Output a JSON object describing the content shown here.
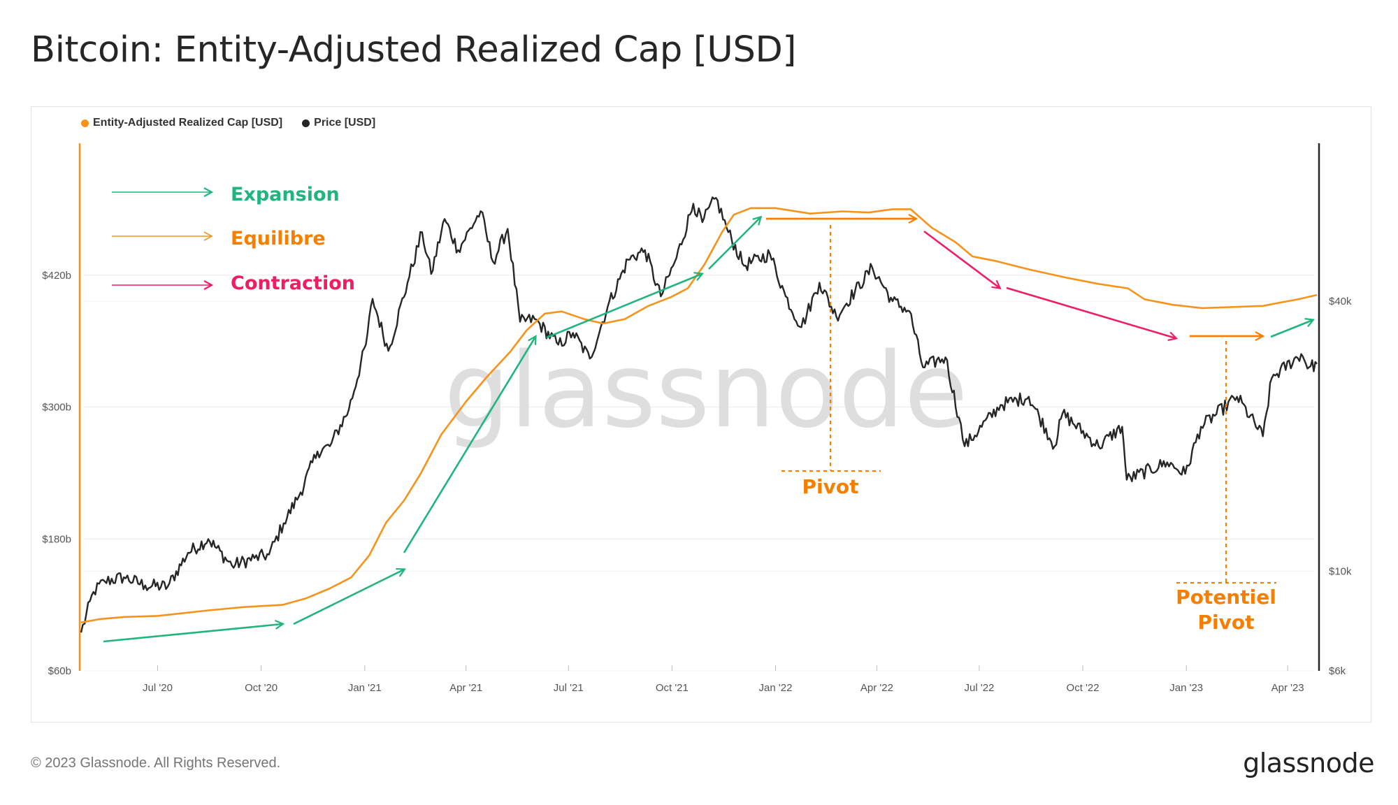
{
  "header": {
    "title": "Bitcoin: Entity-Adjusted Realized Cap [USD]"
  },
  "footer": {
    "copyright": "© 2023 Glassnode. All Rights Reserved.",
    "brand": "glassnode"
  },
  "watermark": "glassnode",
  "colors": {
    "realized_cap": "#f7931a",
    "price": "#262626",
    "expansion": "#1fb57c",
    "equilibre": "#f7931a",
    "contraction": "#ee1e61",
    "pivot": "#f77f00"
  },
  "chart_data": {
    "type": "line",
    "title": "Bitcoin: Entity-Adjusted Realized Cap [USD]",
    "legend_position": "top-left",
    "grid": true,
    "x_ticks": [
      "Jul '20",
      "Oct '20",
      "Jan '21",
      "Apr '21",
      "Jul '21",
      "Oct '21",
      "Jan '22",
      "Apr '22",
      "Jul '22",
      "Oct '22",
      "Jan '23",
      "Apr '23"
    ],
    "x_range": [
      "2020-04-24",
      "2023-04-27"
    ],
    "y_left": {
      "ticks": [
        "$60b",
        "$180b",
        "$300b",
        "$420b"
      ],
      "tick_values": [
        60,
        180,
        300,
        420
      ],
      "range": [
        60,
        540
      ],
      "unit": "USD billions"
    },
    "y_right": {
      "scale": "log",
      "ticks": [
        "$6k",
        "$10k",
        "$40k"
      ],
      "tick_values": [
        6000,
        10000,
        40000
      ],
      "range": [
        6000,
        90000
      ],
      "unit": "USD"
    },
    "series": [
      {
        "name": "Entity-Adjusted Realized Cap [USD]",
        "axis": "left",
        "points": [
          [
            "2020-04-24",
            104
          ],
          [
            "2020-05-10",
            107
          ],
          [
            "2020-06-01",
            109
          ],
          [
            "2020-07-01",
            110
          ],
          [
            "2020-08-15",
            115
          ],
          [
            "2020-09-15",
            118
          ],
          [
            "2020-10-20",
            120
          ],
          [
            "2020-11-10",
            126
          ],
          [
            "2020-12-01",
            135
          ],
          [
            "2020-12-20",
            145
          ],
          [
            "2021-01-05",
            165
          ],
          [
            "2021-01-20",
            195
          ],
          [
            "2021-02-05",
            215
          ],
          [
            "2021-02-20",
            240
          ],
          [
            "2021-03-10",
            275
          ],
          [
            "2021-04-01",
            305
          ],
          [
            "2021-04-20",
            328
          ],
          [
            "2021-05-10",
            350
          ],
          [
            "2021-05-25",
            370
          ],
          [
            "2021-06-10",
            385
          ],
          [
            "2021-06-25",
            387
          ],
          [
            "2021-07-15",
            380
          ],
          [
            "2021-08-01",
            376
          ],
          [
            "2021-08-20",
            380
          ],
          [
            "2021-09-10",
            392
          ],
          [
            "2021-09-30",
            400
          ],
          [
            "2021-10-15",
            408
          ],
          [
            "2021-10-30",
            430
          ],
          [
            "2021-11-15",
            460
          ],
          [
            "2021-11-25",
            475
          ],
          [
            "2021-12-10",
            481
          ],
          [
            "2022-01-01",
            481
          ],
          [
            "2022-02-01",
            476
          ],
          [
            "2022-03-01",
            478
          ],
          [
            "2022-03-25",
            477
          ],
          [
            "2022-04-15",
            480
          ],
          [
            "2022-05-01",
            480
          ],
          [
            "2022-05-20",
            463
          ],
          [
            "2022-06-10",
            450
          ],
          [
            "2022-06-25",
            437
          ],
          [
            "2022-07-15",
            433
          ],
          [
            "2022-08-15",
            425
          ],
          [
            "2022-09-15",
            418
          ],
          [
            "2022-10-15",
            412
          ],
          [
            "2022-11-10",
            408
          ],
          [
            "2022-11-25",
            398
          ],
          [
            "2022-12-20",
            393
          ],
          [
            "2023-01-15",
            390
          ],
          [
            "2023-02-10",
            391
          ],
          [
            "2023-03-10",
            392
          ],
          [
            "2023-03-25",
            395
          ],
          [
            "2023-04-10",
            398
          ],
          [
            "2023-04-27",
            402
          ]
        ]
      },
      {
        "name": "Price [USD]",
        "axis": "right",
        "points": [
          [
            "2020-04-24",
            7300
          ],
          [
            "2020-05-05",
            9000
          ],
          [
            "2020-05-15",
            9500
          ],
          [
            "2020-06-01",
            9700
          ],
          [
            "2020-06-20",
            9300
          ],
          [
            "2020-07-10",
            9250
          ],
          [
            "2020-07-28",
            11000
          ],
          [
            "2020-08-15",
            11800
          ],
          [
            "2020-09-05",
            10300
          ],
          [
            "2020-09-25",
            10700
          ],
          [
            "2020-10-08",
            10900
          ],
          [
            "2020-10-21",
            12800
          ],
          [
            "2020-11-05",
            15000
          ],
          [
            "2020-11-20",
            18500
          ],
          [
            "2020-12-01",
            19000
          ],
          [
            "2020-12-18",
            23000
          ],
          [
            "2021-01-02",
            32000
          ],
          [
            "2021-01-08",
            40500
          ],
          [
            "2021-01-22",
            31000
          ],
          [
            "2021-02-08",
            44000
          ],
          [
            "2021-02-21",
            57000
          ],
          [
            "2021-03-01",
            46000
          ],
          [
            "2021-03-13",
            61000
          ],
          [
            "2021-03-25",
            52000
          ],
          [
            "2021-04-14",
            63500
          ],
          [
            "2021-04-25",
            49000
          ],
          [
            "2021-05-08",
            58000
          ],
          [
            "2021-05-19",
            36000
          ],
          [
            "2021-06-01",
            36500
          ],
          [
            "2021-06-22",
            32000
          ],
          [
            "2021-07-05",
            34000
          ],
          [
            "2021-07-20",
            29800
          ],
          [
            "2021-08-05",
            39000
          ],
          [
            "2021-08-23",
            49500
          ],
          [
            "2021-09-07",
            52000
          ],
          [
            "2021-09-21",
            41000
          ],
          [
            "2021-10-05",
            50000
          ],
          [
            "2021-10-20",
            66000
          ],
          [
            "2021-10-28",
            60000
          ],
          [
            "2021-11-09",
            68000
          ],
          [
            "2021-11-20",
            57000
          ],
          [
            "2021-12-04",
            48000
          ],
          [
            "2021-12-27",
            51000
          ],
          [
            "2022-01-10",
            41000
          ],
          [
            "2022-01-24",
            35000
          ],
          [
            "2022-02-09",
            44000
          ],
          [
            "2022-02-24",
            37000
          ],
          [
            "2022-03-28",
            47500
          ],
          [
            "2022-04-15",
            40000
          ],
          [
            "2022-04-30",
            38000
          ],
          [
            "2022-05-12",
            28500
          ],
          [
            "2022-06-01",
            30000
          ],
          [
            "2022-06-13",
            22000
          ],
          [
            "2022-06-18",
            19000
          ],
          [
            "2022-07-20",
            23500
          ],
          [
            "2022-08-14",
            24500
          ],
          [
            "2022-09-06",
            19000
          ],
          [
            "2022-09-13",
            22500
          ],
          [
            "2022-10-15",
            19000
          ],
          [
            "2022-11-05",
            21000
          ],
          [
            "2022-11-09",
            16000
          ],
          [
            "2022-12-15",
            17500
          ],
          [
            "2022-12-31",
            16500
          ],
          [
            "2023-01-14",
            21000
          ],
          [
            "2023-02-15",
            24500
          ],
          [
            "2023-03-10",
            20000
          ],
          [
            "2023-03-18",
            27000
          ],
          [
            "2023-04-13",
            30500
          ],
          [
            "2023-04-20",
            28500
          ],
          [
            "2023-04-27",
            29000
          ]
        ]
      }
    ],
    "annotations": {
      "legend_expansion": "Expansion",
      "legend_equilibre": "Equilibre",
      "legend_contraction": "Contraction",
      "pivot": "Pivot",
      "potential_pivot_line1": "Potentiel",
      "potential_pivot_line2": "Pivot"
    }
  }
}
